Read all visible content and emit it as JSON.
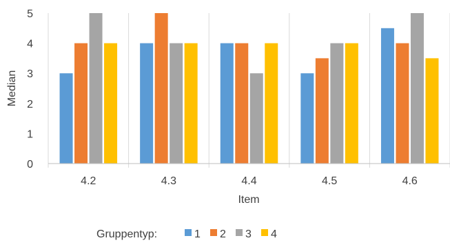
{
  "chart_data": {
    "type": "bar",
    "title": "",
    "xlabel": "Item",
    "ylabel": "Median",
    "categories": [
      "4.2",
      "4.3",
      "4.4",
      "4.5",
      "4.6"
    ],
    "ylim": [
      0,
      5
    ],
    "yticks": [
      0,
      1,
      2,
      3,
      4,
      5
    ],
    "grid": "vertical separators between categories",
    "legend": {
      "title": "Gruppentyp:",
      "placement": "bottom"
    },
    "series": [
      {
        "name": "1",
        "color": "#5b9bd5",
        "values": [
          3,
          4,
          4,
          3,
          4.5
        ]
      },
      {
        "name": "2",
        "color": "#ed7d31",
        "values": [
          4,
          5,
          4,
          3.5,
          4
        ]
      },
      {
        "name": "3",
        "color": "#a5a5a5",
        "values": [
          5,
          4,
          3,
          4,
          5
        ]
      },
      {
        "name": "4",
        "color": "#ffc000",
        "values": [
          4,
          4,
          4,
          4,
          3.5
        ]
      }
    ]
  }
}
